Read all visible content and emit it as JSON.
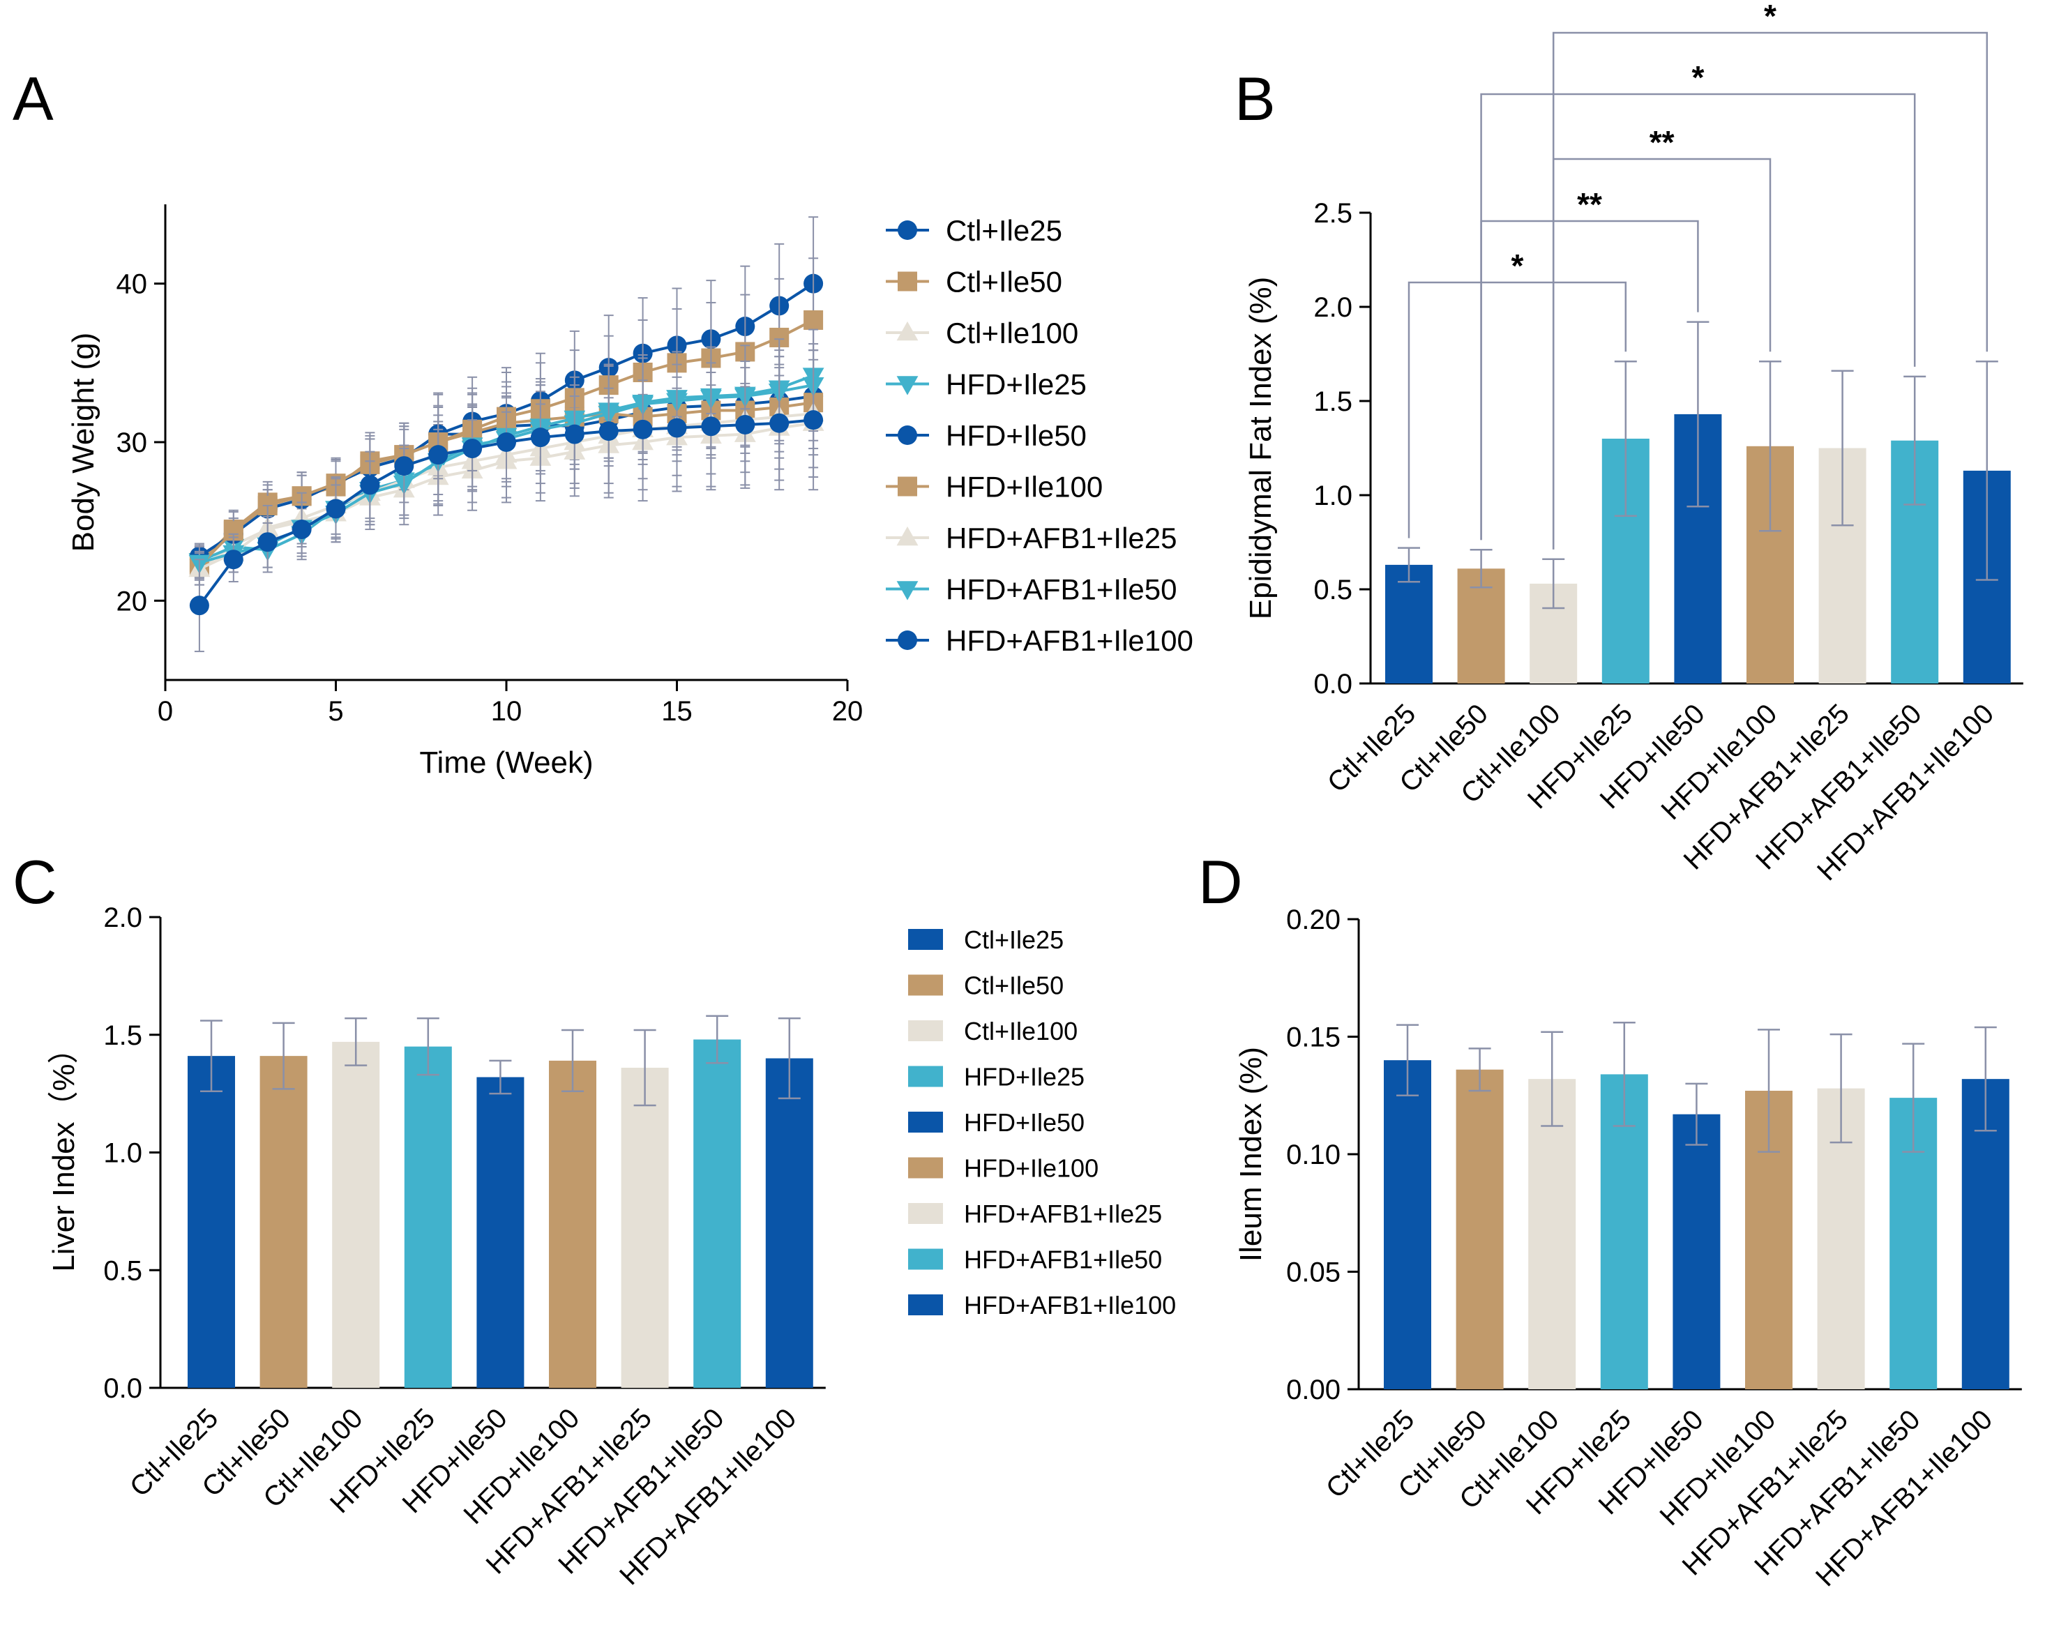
{
  "groups": [
    "Ctl+Ile25",
    "Ctl+Ile50",
    "Ctl+Ile100",
    "HFD+Ile25",
    "HFD+Ile50",
    "HFD+Ile100",
    "HFD+AFB1+Ile25",
    "HFD+AFB1+Ile50",
    "HFD+AFB1+Ile100"
  ],
  "colors": {
    "blue": "#0a55a8",
    "tan": "#c19a6b",
    "beige": "#e5e0d6",
    "teal": "#41b2cc",
    "err": "#8a90a8"
  },
  "bar_colors": [
    "#0a55a8",
    "#c19a6b",
    "#e5e0d6",
    "#41b2cc",
    "#0a55a8",
    "#c19a6b",
    "#e5e0d6",
    "#41b2cc",
    "#0a55a8"
  ],
  "chart_data": [
    {
      "panel": "A",
      "type": "line",
      "xlabel": "Time (Week)",
      "ylabel": "Body Weight (g)",
      "xlim": [
        0,
        20
      ],
      "ylim": [
        15,
        45
      ],
      "xticks": [
        0,
        5,
        10,
        15,
        20
      ],
      "yticks": [
        20,
        30,
        40
      ],
      "x": [
        1,
        2,
        3,
        4,
        5,
        6,
        7,
        8,
        9,
        10,
        11,
        12,
        13,
        14,
        15,
        16,
        17,
        18,
        19
      ],
      "legend": "right",
      "series": [
        {
          "name": "Ctl+Ile25",
          "marker": "circle",
          "color": "#0a55a8",
          "values": [
            22.6,
            24.2,
            25.8,
            26.4,
            27.4,
            28.4,
            29.0,
            30.5,
            30.5,
            31.0,
            31.1,
            31.0,
            31.4,
            31.9,
            32.2,
            32.3,
            32.4,
            32.6,
            32.9
          ],
          "err": [
            0.8,
            1.0,
            1.2,
            1.5,
            1.5,
            1.8,
            2.0,
            2.5,
            2.5,
            2.5,
            2.5,
            2.7,
            2.9,
            3.0,
            3.0,
            3.1,
            3.1,
            3.2,
            3.3
          ]
        },
        {
          "name": "Ctl+Ile50",
          "marker": "square",
          "color": "#c19a6b",
          "values": [
            22.4,
            24.5,
            26.2,
            26.6,
            27.2,
            28.8,
            29.2,
            30.0,
            30.6,
            31.2,
            31.4,
            31.6,
            31.8,
            31.6,
            31.8,
            32.0,
            32.0,
            32.2,
            32.5
          ],
          "err": [
            0.9,
            1.2,
            1.3,
            1.5,
            1.6,
            1.8,
            2.0,
            2.2,
            2.5,
            2.6,
            2.6,
            2.7,
            2.8,
            3.0,
            3.0,
            3.0,
            3.2,
            3.2,
            3.3
          ]
        },
        {
          "name": "Ctl+Ile100",
          "marker": "triangle",
          "color": "#e5e0d6",
          "values": [
            22.0,
            23.5,
            24.5,
            25.0,
            25.5,
            26.5,
            27.0,
            27.8,
            28.2,
            28.8,
            29.0,
            29.4,
            29.8,
            30.0,
            30.3,
            30.4,
            30.5,
            30.9,
            31.2
          ],
          "err": [
            1.0,
            1.2,
            1.4,
            1.6,
            1.8,
            2.0,
            2.2,
            2.4,
            2.5,
            2.6,
            2.7,
            2.8,
            3.0,
            3.0,
            3.1,
            3.2,
            3.2,
            3.3,
            3.4
          ]
        },
        {
          "name": "HFD+Ile25",
          "marker": "triangle-down",
          "color": "#41b2cc",
          "values": [
            22.5,
            23.4,
            23.2,
            24.2,
            25.8,
            27.0,
            27.6,
            28.6,
            29.6,
            30.4,
            31.0,
            31.5,
            32.0,
            32.5,
            32.8,
            32.9,
            33.0,
            33.4,
            34.2
          ],
          "err": [
            1.0,
            1.2,
            1.4,
            1.6,
            1.8,
            2.0,
            2.2,
            2.5,
            2.6,
            2.7,
            2.8,
            2.9,
            3.0,
            3.1,
            3.1,
            3.2,
            3.2,
            3.3,
            3.5
          ]
        },
        {
          "name": "HFD+Ile50",
          "marker": "circle",
          "color": "#0a55a8",
          "values": [
            22.8,
            24.2,
            25.8,
            26.4,
            27.4,
            28.4,
            29.0,
            30.5,
            31.3,
            31.8,
            32.6,
            33.9,
            34.7,
            35.6,
            36.1,
            36.5,
            37.3,
            38.6,
            40.0
          ],
          "err": [
            0.8,
            1.0,
            1.2,
            1.5,
            1.5,
            1.8,
            2.0,
            2.6,
            2.8,
            2.9,
            3.0,
            3.1,
            3.3,
            3.5,
            3.6,
            3.7,
            3.8,
            3.9,
            4.2
          ]
        },
        {
          "name": "HFD+Ile100",
          "marker": "square",
          "color": "#c19a6b",
          "values": [
            22.2,
            24.4,
            26.0,
            26.6,
            27.4,
            28.6,
            29.2,
            30.0,
            30.8,
            31.6,
            32.1,
            32.8,
            33.6,
            34.4,
            35.0,
            35.3,
            35.7,
            36.6,
            37.7
          ],
          "err": [
            0.9,
            1.2,
            1.3,
            1.5,
            1.6,
            1.8,
            2.0,
            2.3,
            2.6,
            2.8,
            2.9,
            3.0,
            3.1,
            3.3,
            3.4,
            3.5,
            3.6,
            3.7,
            3.9
          ]
        },
        {
          "name": "HFD+AFB1+Ile25",
          "marker": "triangle",
          "color": "#e5e0d6",
          "values": [
            22.0,
            23.0,
            24.6,
            25.2,
            26.0,
            26.8,
            27.6,
            28.4,
            28.8,
            29.2,
            29.6,
            30.0,
            30.4,
            30.8,
            31.0,
            31.2,
            31.4,
            31.6,
            31.8
          ],
          "err": [
            1.0,
            1.2,
            1.4,
            1.6,
            1.8,
            2.0,
            2.2,
            2.4,
            2.6,
            2.7,
            2.8,
            2.9,
            3.0,
            3.1,
            3.1,
            3.2,
            3.3,
            3.3,
            3.4
          ]
        },
        {
          "name": "HFD+AFB1+Ile50",
          "marker": "triangle-down",
          "color": "#41b2cc",
          "values": [
            22.4,
            23.0,
            23.5,
            24.6,
            25.5,
            26.8,
            27.4,
            28.8,
            29.8,
            30.2,
            30.8,
            31.2,
            31.8,
            32.4,
            32.6,
            32.8,
            32.9,
            33.2,
            33.6
          ],
          "err": [
            1.0,
            1.2,
            1.4,
            1.6,
            1.8,
            2.0,
            2.2,
            2.5,
            2.6,
            2.7,
            2.8,
            2.9,
            3.0,
            3.1,
            3.1,
            3.2,
            3.2,
            3.3,
            3.5
          ]
        },
        {
          "name": "HFD+AFB1+Ile100",
          "marker": "circle",
          "color": "#0a55a8",
          "values": [
            19.7,
            22.6,
            23.7,
            24.5,
            25.8,
            27.3,
            28.5,
            29.2,
            29.6,
            30.0,
            30.3,
            30.5,
            30.7,
            30.8,
            30.9,
            31.0,
            31.1,
            31.2,
            31.4
          ],
          "err": [
            2.9,
            1.4,
            1.6,
            1.7,
            1.9,
            2.1,
            2.3,
            2.5,
            2.7,
            2.8,
            2.9,
            3.1,
            4.2,
            4.5,
            4.0,
            4.0,
            4.0,
            4.2,
            4.4
          ]
        }
      ]
    },
    {
      "panel": "B",
      "type": "bar",
      "ylabel": "Epididymal Fat Index (%)",
      "ylim": [
        0,
        2.5
      ],
      "yticks": [
        "0.0",
        "0.5",
        "1.0",
        "1.5",
        "2.0",
        "2.5"
      ],
      "values": [
        0.63,
        0.61,
        0.53,
        1.3,
        1.43,
        1.26,
        1.25,
        1.29,
        1.13
      ],
      "err": [
        0.09,
        0.1,
        0.13,
        0.41,
        0.49,
        0.45,
        0.41,
        0.34,
        0.58
      ],
      "significance": [
        {
          "from": 0,
          "to": 3,
          "label": "*"
        },
        {
          "from": 1,
          "to": 4,
          "label": "**"
        },
        {
          "from": 2,
          "to": 5,
          "label": "**"
        },
        {
          "from": 1,
          "to": 7,
          "label": "*"
        },
        {
          "from": 2,
          "to": 8,
          "label": "*"
        }
      ]
    },
    {
      "panel": "C",
      "type": "bar",
      "ylabel": "Liver Index（%）",
      "ylim": [
        0,
        2.0
      ],
      "yticks": [
        "0.0",
        "0.5",
        "1.0",
        "1.5",
        "2.0"
      ],
      "values": [
        1.41,
        1.41,
        1.47,
        1.45,
        1.32,
        1.39,
        1.36,
        1.48,
        1.4
      ],
      "err": [
        0.15,
        0.14,
        0.1,
        0.12,
        0.07,
        0.13,
        0.16,
        0.1,
        0.17
      ],
      "legend": "right"
    },
    {
      "panel": "D",
      "type": "bar",
      "ylabel": "Ileum Index (%)",
      "ylim": [
        0,
        0.2
      ],
      "yticks": [
        "0.00",
        "0.05",
        "0.10",
        "0.15",
        "0.20"
      ],
      "values": [
        0.14,
        0.136,
        0.132,
        0.134,
        0.117,
        0.127,
        0.128,
        0.124,
        0.132
      ],
      "err": [
        0.015,
        0.009,
        0.02,
        0.022,
        0.013,
        0.026,
        0.023,
        0.023,
        0.022
      ]
    }
  ]
}
